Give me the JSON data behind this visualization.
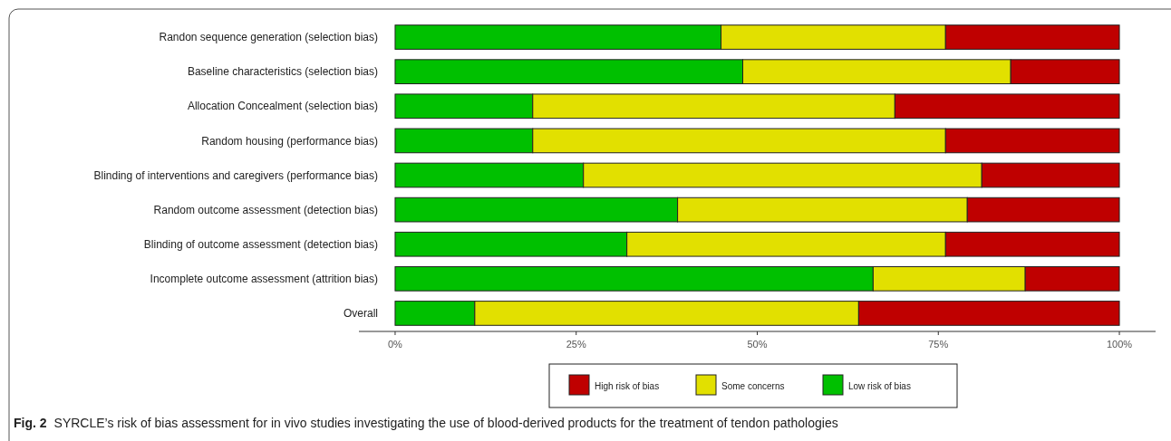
{
  "chart_data": {
    "type": "bar",
    "orientation": "horizontal",
    "stacked": true,
    "categories": [
      "Randon sequence generation (selection bias)",
      "Baseline characteristics (selection bias)",
      "Allocation Concealment (selection bias)",
      "Random housing (performance bias)",
      "Blinding of interventions and caregivers (performance bias)",
      "Random outcome assessment (detection bias)",
      "Blinding of outcome assessment (detection bias)",
      "Incomplete outcome assessment (attrition bias)",
      "Overall"
    ],
    "series": [
      {
        "name": "Low risk of bias",
        "color": "#00c000",
        "values": [
          45,
          48,
          19,
          19,
          26,
          39,
          32,
          66,
          11
        ]
      },
      {
        "name": "Some concerns",
        "color": "#e2e000",
        "values": [
          31,
          37,
          50,
          57,
          55,
          40,
          44,
          21,
          53
        ]
      },
      {
        "name": "High risk of bias",
        "color": "#bf0000",
        "values": [
          24,
          15,
          31,
          24,
          19,
          21,
          24,
          13,
          36
        ]
      }
    ],
    "xlim": [
      -5,
      105
    ],
    "xticks": [
      {
        "value": 0,
        "label": "0%"
      },
      {
        "value": 25,
        "label": "25%"
      },
      {
        "value": 50,
        "label": "50%"
      },
      {
        "value": 75,
        "label": "75%"
      },
      {
        "value": 100,
        "label": "100%"
      }
    ],
    "legend": "bottom",
    "grid": false,
    "annotations": [
      "Fig. 2",
      "SYRCLE’s risk of bias assessment for in vivo studies investigating the use of blood-derived products for the treatment of tendon pathologies"
    ]
  }
}
